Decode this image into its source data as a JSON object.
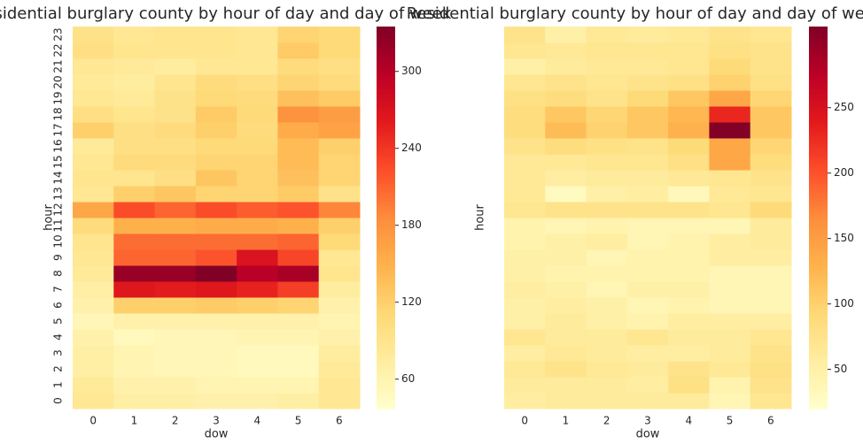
{
  "chart_data": [
    {
      "type": "heatmap",
      "title": "Residential burglary county by hour of day and day of week",
      "xlabel": "dow",
      "ylabel": "hour",
      "colormap": "YlOrRd",
      "x": [
        0,
        1,
        2,
        3,
        4,
        5,
        6
      ],
      "y": [
        0,
        1,
        2,
        3,
        4,
        5,
        6,
        7,
        8,
        9,
        10,
        11,
        12,
        13,
        14,
        15,
        16,
        17,
        18,
        19,
        20,
        21,
        22,
        23
      ],
      "values": [
        [
          85,
          70,
          70,
          65,
          65,
          70,
          85
        ],
        [
          80,
          65,
          65,
          60,
          60,
          60,
          85
        ],
        [
          70,
          60,
          55,
          55,
          50,
          50,
          80
        ],
        [
          70,
          60,
          55,
          55,
          50,
          50,
          75
        ],
        [
          65,
          50,
          55,
          55,
          60,
          60,
          65
        ],
        [
          55,
          65,
          65,
          65,
          65,
          65,
          60
        ],
        [
          65,
          120,
          120,
          125,
          120,
          115,
          65
        ],
        [
          70,
          265,
          260,
          265,
          255,
          235,
          75
        ],
        [
          80,
          320,
          320,
          335,
          300,
          310,
          90
        ],
        [
          85,
          210,
          210,
          220,
          270,
          230,
          85
        ],
        [
          90,
          205,
          205,
          205,
          205,
          210,
          110
        ],
        [
          105,
          150,
          150,
          155,
          155,
          150,
          120
        ],
        [
          160,
          225,
          210,
          225,
          215,
          220,
          190
        ],
        [
          85,
          120,
          130,
          115,
          115,
          125,
          95
        ],
        [
          90,
          90,
          100,
          130,
          115,
          135,
          115
        ],
        [
          85,
          105,
          105,
          115,
          115,
          140,
          115
        ],
        [
          80,
          100,
          100,
          110,
          110,
          140,
          120
        ],
        [
          120,
          100,
          105,
          120,
          105,
          155,
          165
        ],
        [
          100,
          90,
          95,
          125,
          110,
          180,
          170
        ],
        [
          85,
          80,
          95,
          110,
          105,
          135,
          125
        ],
        [
          80,
          75,
          90,
          105,
          100,
          115,
          105
        ],
        [
          85,
          80,
          75,
          85,
          85,
          105,
          100
        ],
        [
          100,
          90,
          90,
          90,
          85,
          125,
          110
        ],
        [
          95,
          85,
          90,
          90,
          85,
          115,
          110
        ]
      ],
      "clim": [
        37,
        335
      ],
      "cticks": [
        60,
        120,
        180,
        240,
        300
      ]
    },
    {
      "type": "heatmap",
      "title": "Residential burglary county by hour of day and day of week",
      "xlabel": "dow",
      "ylabel": "hour",
      "colormap": "YlOrRd",
      "x": [
        0,
        1,
        2,
        3,
        4,
        5,
        6
      ],
      "values": [
        [
          55,
          60,
          60,
          60,
          60,
          40,
          70
        ],
        [
          60,
          60,
          60,
          55,
          80,
          45,
          75
        ],
        [
          65,
          75,
          65,
          60,
          75,
          65,
          80
        ],
        [
          55,
          65,
          60,
          55,
          55,
          60,
          75
        ],
        [
          70,
          60,
          60,
          70,
          60,
          60,
          70
        ],
        [
          50,
          60,
          50,
          45,
          55,
          55,
          55
        ],
        [
          50,
          55,
          50,
          40,
          45,
          40,
          40
        ],
        [
          55,
          50,
          40,
          50,
          50,
          40,
          40
        ],
        [
          50,
          45,
          45,
          45,
          45,
          40,
          40
        ],
        [
          50,
          50,
          40,
          45,
          45,
          55,
          55
        ],
        [
          45,
          50,
          55,
          40,
          45,
          55,
          60
        ],
        [
          45,
          40,
          45,
          40,
          40,
          40,
          60
        ],
        [
          70,
          75,
          75,
          75,
          75,
          70,
          90
        ],
        [
          65,
          30,
          50,
          55,
          35,
          65,
          70
        ],
        [
          65,
          55,
          60,
          60,
          65,
          70,
          75
        ],
        [
          65,
          65,
          70,
          70,
          80,
          140,
          85
        ],
        [
          75,
          85,
          80,
          75,
          90,
          140,
          95
        ],
        [
          85,
          120,
          100,
          110,
          130,
          310,
          110
        ],
        [
          85,
          110,
          95,
          110,
          125,
          230,
          110
        ],
        [
          80,
          85,
          75,
          90,
          110,
          140,
          95
        ],
        [
          70,
          75,
          70,
          75,
          80,
          100,
          80
        ],
        [
          50,
          60,
          65,
          65,
          70,
          90,
          75
        ],
        [
          70,
          65,
          70,
          70,
          70,
          80,
          75
        ],
        [
          75,
          50,
          65,
          60,
          65,
          75,
          70
        ]
      ],
      "clim": [
        20,
        312
      ],
      "cticks": [
        50,
        100,
        150,
        200,
        250
      ]
    }
  ]
}
